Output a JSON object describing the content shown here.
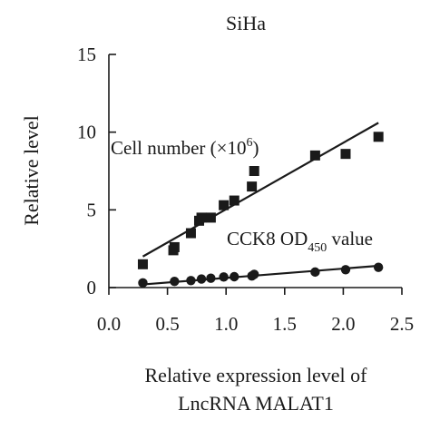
{
  "chart_data": {
    "type": "scatter",
    "title": "SiHa",
    "xlabel": [
      "Relative expression level of",
      "LncRNA MALAT1"
    ],
    "ylabel": "Relative level",
    "xlim": [
      0.0,
      2.5
    ],
    "ylim": [
      0,
      15
    ],
    "xticks": [
      "0.0",
      "0.5",
      "1.0",
      "1.5",
      "2.0",
      "2.5"
    ],
    "yticks": [
      "0",
      "5",
      "10",
      "15"
    ],
    "grid": false,
    "series": [
      {
        "label_main": "Cell number (×10",
        "label_sup": "6",
        "label_end": ")",
        "marker": "square",
        "x": [
          0.29,
          0.55,
          0.56,
          0.7,
          0.77,
          0.79,
          0.87,
          0.98,
          1.07,
          1.22,
          1.24,
          1.76,
          2.02,
          2.3
        ],
        "y": [
          1.5,
          2.4,
          2.6,
          3.5,
          4.3,
          4.5,
          4.5,
          5.3,
          5.6,
          6.5,
          7.5,
          8.5,
          8.6,
          9.7
        ],
        "fit": [
          [
            0.29,
            2.0
          ],
          [
            2.3,
            10.6
          ]
        ]
      },
      {
        "label_main": "CCK8 OD",
        "label_sub": "450",
        "label_end": " value",
        "marker": "circle",
        "x": [
          0.29,
          0.56,
          0.7,
          0.79,
          0.87,
          0.98,
          1.07,
          1.22,
          1.24,
          1.76,
          2.02,
          2.3
        ],
        "y": [
          0.3,
          0.4,
          0.45,
          0.55,
          0.6,
          0.68,
          0.7,
          0.75,
          0.85,
          1.0,
          1.15,
          1.3
        ],
        "fit": [
          [
            0.29,
            0.2
          ],
          [
            2.3,
            1.4
          ]
        ]
      }
    ]
  }
}
